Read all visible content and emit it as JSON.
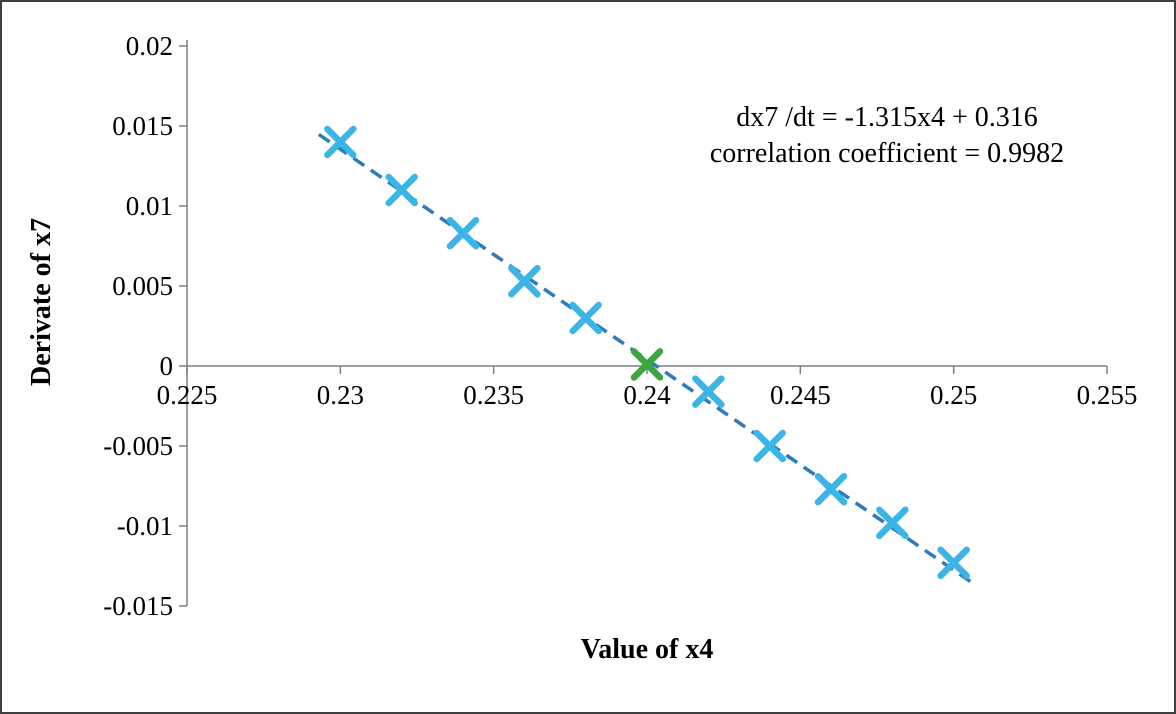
{
  "chart_data": {
    "type": "scatter",
    "title": "",
    "xlabel": "Value of x4",
    "ylabel": "Derivate of x7",
    "xlim": [
      0.225,
      0.255
    ],
    "ylim": [
      -0.015,
      0.02
    ],
    "x_ticks": [
      0.225,
      0.23,
      0.235,
      0.24,
      0.245,
      0.25,
      0.255
    ],
    "x_tick_labels": [
      "0.225",
      "0.23",
      "0.235",
      "0.24",
      "0.245",
      "0.25",
      "0.255"
    ],
    "y_ticks": [
      -0.015,
      -0.01,
      -0.005,
      0,
      0.005,
      0.01,
      0.015,
      0.02
    ],
    "y_tick_labels": [
      "-0.015",
      "-0.01",
      "-0.005",
      "0",
      "0.005",
      "0.01",
      "0.015",
      "0.02"
    ],
    "grid": false,
    "legend": "none",
    "series": [
      {
        "name": "derivative-samples",
        "marker": "x",
        "color": "#3BB4E8",
        "points": [
          [
            0.23,
            0.014
          ],
          [
            0.232,
            0.011
          ],
          [
            0.234,
            0.0083
          ],
          [
            0.236,
            0.0053
          ],
          [
            0.238,
            0.003
          ],
          [
            0.242,
            -0.0016
          ],
          [
            0.244,
            -0.005
          ],
          [
            0.246,
            -0.0077
          ],
          [
            0.248,
            -0.0098
          ],
          [
            0.25,
            -0.0123
          ]
        ]
      },
      {
        "name": "equilibrium-point",
        "marker": "x",
        "color": "#3DA53D",
        "points": [
          [
            0.24,
            0.0001
          ]
        ]
      }
    ],
    "trendline": {
      "style": "dashed",
      "color": "#2E7BBB",
      "slope": -1.315,
      "intercept": 0.316,
      "x_start": 0.2293,
      "x_end": 0.2507
    },
    "annotation": {
      "line1": "dx7 /dt = -1.315x4 + 0.316",
      "line2": "correlation coefficient = 0.9982"
    }
  }
}
